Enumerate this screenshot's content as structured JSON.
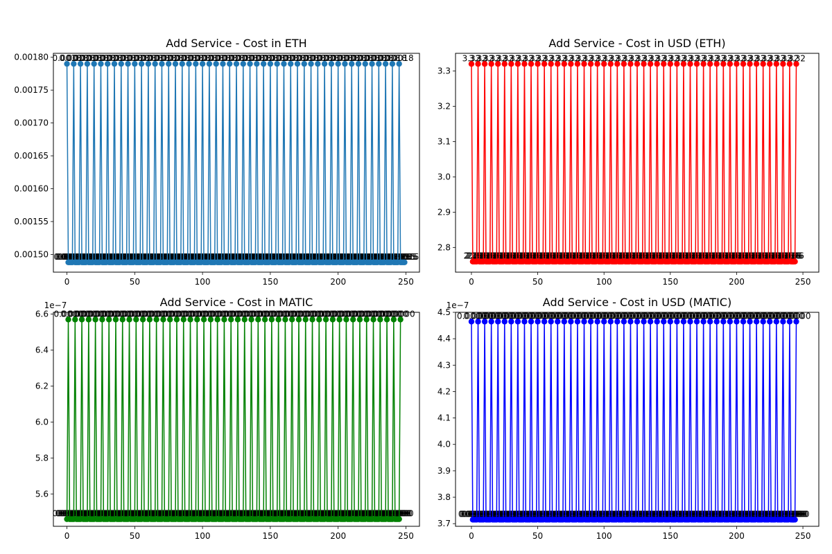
{
  "chart_data": [
    {
      "type": "line",
      "title": "Add Service - Cost in ETH",
      "color": "#1f77b4",
      "marker": "circle",
      "x_range": [
        0,
        249
      ],
      "pattern": "5-point period: high value at x = 0, 5, 10, ... 245; low value elsewhere",
      "high_value": 0.00179,
      "low_value": 0.001488,
      "point_label_high": "0.0018",
      "point_label_low": "0.0015",
      "xlim": [
        -10,
        260
      ],
      "ylim": [
        0.001473,
        0.001806
      ],
      "xticks": [
        0,
        50,
        100,
        150,
        200,
        250
      ],
      "yticks": [
        0.0015,
        0.00155,
        0.0016,
        0.00165,
        0.0017,
        0.00175,
        0.0018
      ],
      "ytick_labels": [
        "0.00150",
        "0.00155",
        "0.00160",
        "0.00165",
        "0.00170",
        "0.00175",
        "0.00180"
      ],
      "y_offset_label": "",
      "xlabel": "",
      "ylabel": ""
    },
    {
      "type": "line",
      "title": "Add Service - Cost in USD (ETH)",
      "color": "#ff0000",
      "marker": "circle",
      "x_range": [
        0,
        245
      ],
      "pattern": "5-point period: high value at x = 0, 5, 10, ... 245; low value elsewhere",
      "high_value": 3.32,
      "low_value": 2.76,
      "point_label_high": "3.32",
      "point_label_low": "2.76",
      "xlim": [
        -12,
        262
      ],
      "ylim": [
        2.73,
        3.35
      ],
      "xticks": [
        0,
        50,
        100,
        150,
        200,
        250
      ],
      "yticks": [
        2.8,
        2.9,
        3.0,
        3.1,
        3.2,
        3.3
      ],
      "ytick_labels": [
        "2.8",
        "2.9",
        "3.0",
        "3.1",
        "3.2",
        "3.3"
      ],
      "y_offset_label": "",
      "xlabel": "",
      "ylabel": ""
    },
    {
      "type": "line",
      "title": "Add Service - Cost in MATIC",
      "color": "#008000",
      "marker": "circle",
      "x_range": [
        0,
        246
      ],
      "pattern": "5-point period: high value at x = 1, 6, 11, ... 246; low value elsewhere",
      "high_value": 6.57e-07,
      "low_value": 5.46e-07,
      "point_label_high": "0.0000",
      "point_label_low": "0.0000",
      "xlim": [
        -10,
        260
      ],
      "ylim": [
        5.42e-07,
        6.61e-07
      ],
      "xticks": [
        0,
        50,
        100,
        150,
        200,
        250
      ],
      "yticks": [
        5.6e-07,
        5.8e-07,
        6e-07,
        6.2e-07,
        6.4e-07,
        6.6e-07
      ],
      "ytick_labels": [
        "5.6",
        "5.8",
        "6.0",
        "6.2",
        "6.4",
        "6.6"
      ],
      "y_offset_label": "1e−7",
      "xlabel": "",
      "ylabel": ""
    },
    {
      "type": "line",
      "title": "Add Service - Cost in USD (MATIC)",
      "color": "#0000ff",
      "marker": "circle",
      "x_range": [
        0,
        245
      ],
      "pattern": "5-point period: high value at x = 0, 5, 10, ... 245; low value elsewhere",
      "high_value": 4.465e-07,
      "low_value": 3.715e-07,
      "point_label_high": "0.0000",
      "point_label_low": "0.0000",
      "xlim": [
        -12,
        262
      ],
      "ylim": [
        3.69e-07,
        4.5e-07
      ],
      "xticks": [
        0,
        50,
        100,
        150,
        200,
        250
      ],
      "yticks": [
        3.7e-07,
        3.8e-07,
        3.9e-07,
        4e-07,
        4.1e-07,
        4.2e-07,
        4.3e-07,
        4.4e-07,
        4.5e-07
      ],
      "ytick_labels": [
        "3.7",
        "3.8",
        "3.9",
        "4.0",
        "4.1",
        "4.2",
        "4.3",
        "4.4",
        "4.5"
      ],
      "y_offset_label": "1e−7",
      "xlabel": "",
      "ylabel": ""
    }
  ]
}
